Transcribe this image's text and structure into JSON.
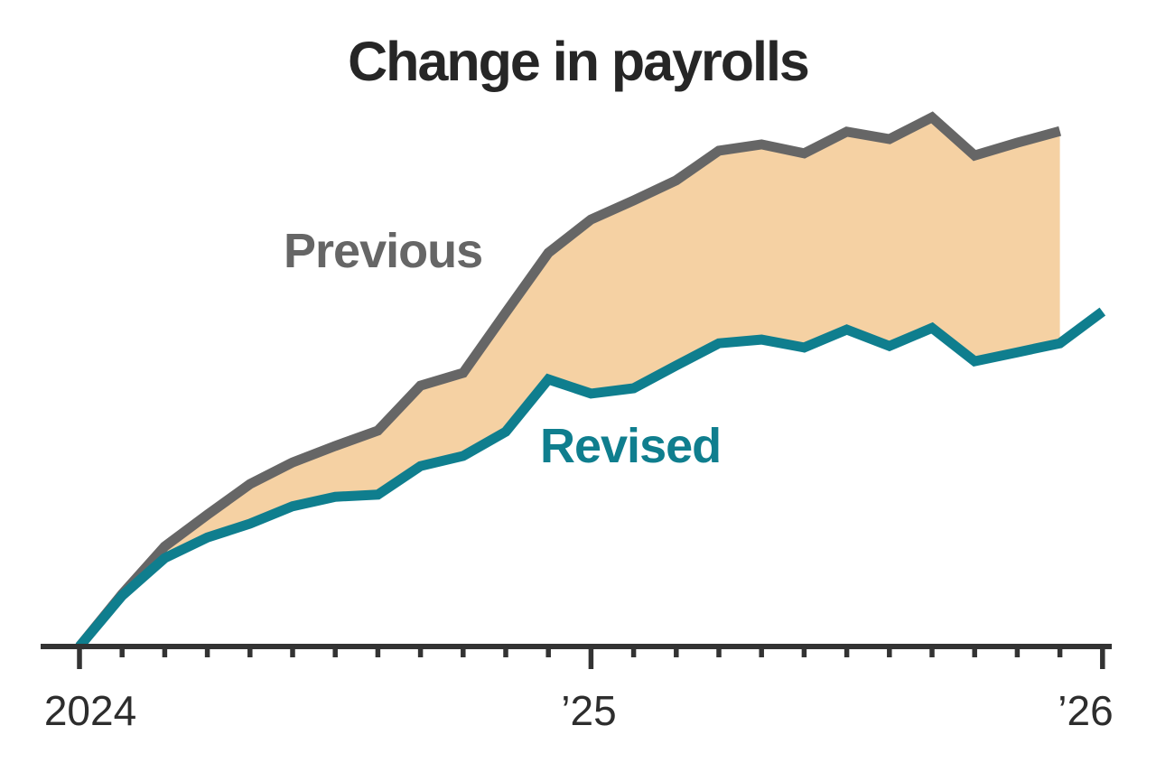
{
  "page": {
    "background_color": "#ffffff"
  },
  "chart": {
    "title": "Change in payrolls",
    "inline_labels": {
      "previous": "Previous",
      "revised": "Revised"
    },
    "x_axis": {
      "tick_labels": {
        "year_2024": "2024",
        "year_25": "’25",
        "year_26": "’26"
      }
    },
    "colors": {
      "previous_line": "#666666",
      "revised_line": "#0f7e8e",
      "gap_fill": "#f5d1a3",
      "axis": "#333333",
      "title_text": "#262626",
      "tick_label_text": "#2d2d2d"
    }
  },
  "chart_data": {
    "type": "line",
    "title": "Change in payrolls",
    "x": [
      "2024-01",
      "2024-02",
      "2024-03",
      "2024-04",
      "2024-05",
      "2024-06",
      "2024-07",
      "2024-08",
      "2024-09",
      "2024-10",
      "2024-11",
      "2024-12",
      "2025-01",
      "2025-02",
      "2025-03",
      "2025-04",
      "2025-05",
      "2025-06",
      "2025-07",
      "2025-08",
      "2025-09",
      "2025-10",
      "2025-11",
      "2025-12",
      "2026-01"
    ],
    "x_tick_labels": [
      "2024",
      "’25",
      "’26"
    ],
    "x_tick_positions": [
      0,
      12,
      24
    ],
    "minor_ticks": "monthly",
    "ylabel": "",
    "y_units": "cumulative change, index (no y-axis scale shown; 100 = series maximum)",
    "ylim": [
      0,
      105
    ],
    "grid": false,
    "legend_position": "inline labels on chart",
    "series": [
      {
        "name": "Previous",
        "color": "#666666",
        "values": [
          0,
          9.9,
          18.9,
          24.9,
          30.7,
          34.8,
          37.9,
          40.8,
          49.3,
          51.7,
          63.1,
          74.4,
          80.7,
          84.3,
          88.1,
          93.7,
          94.9,
          93.2,
          97.3,
          95.9,
          100,
          92.8,
          95.2,
          97.4
        ]
      },
      {
        "name": "Revised",
        "color": "#0f7e8e",
        "values": [
          0,
          9.6,
          16.7,
          20.6,
          23.2,
          26.5,
          28.3,
          28.7,
          34.1,
          36.0,
          40.6,
          50.5,
          47.8,
          48.8,
          53.1,
          57.3,
          58.0,
          56.5,
          59.9,
          56.8,
          60.2,
          53.9,
          55.6,
          57.3,
          63.3
        ]
      }
    ],
    "fill_between": {
      "from_series": "Previous",
      "to_series": "Revised",
      "color": "#f5d1a3",
      "note": "Previous series ends one month earlier than Revised; fill closes with vertical edge at 2025-12"
    }
  }
}
